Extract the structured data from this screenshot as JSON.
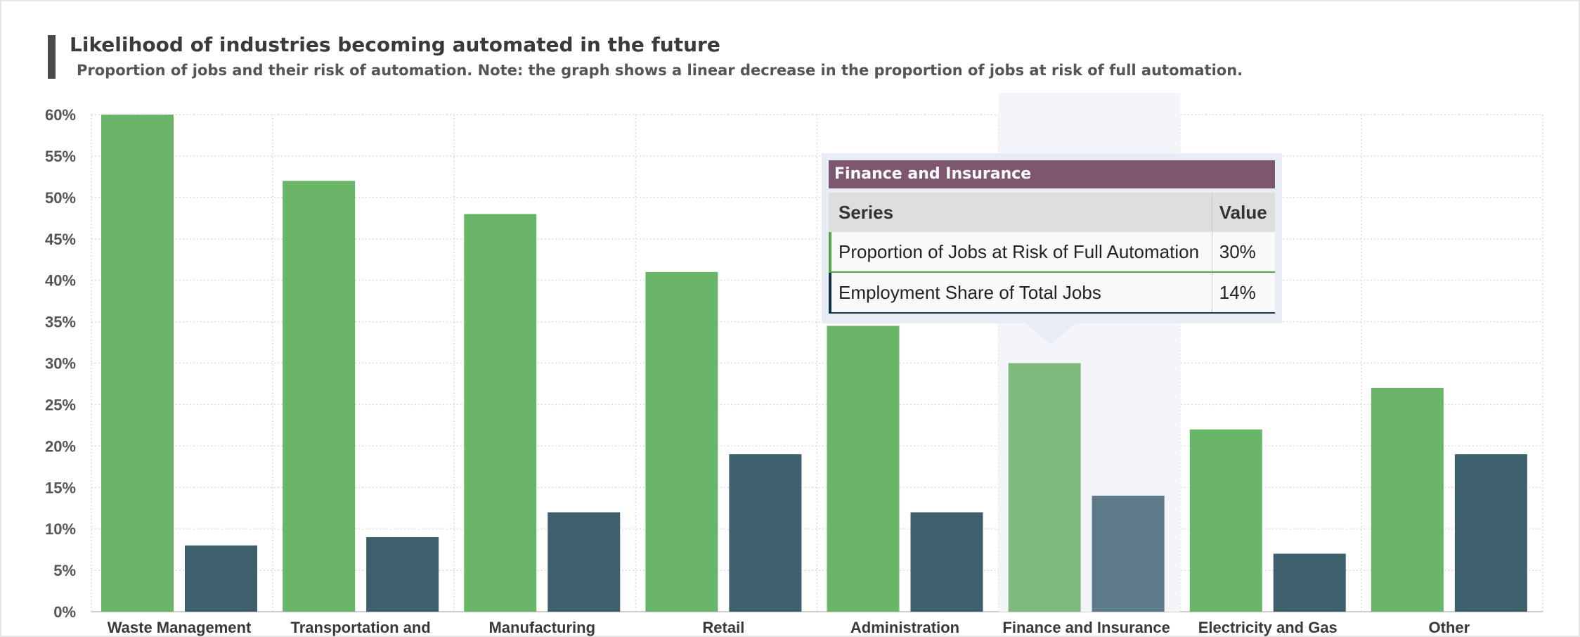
{
  "chart_data": {
    "type": "bar",
    "title": "Likelihood of industries becoming automated in the future",
    "subtitle": "Proportion of jobs and their risk of automation. Note: the graph shows a linear decrease in the proportion of jobs at risk of full automation.",
    "categories": [
      "Waste Management",
      "Transportation and",
      "Manufacturing",
      "Retail",
      "Administration",
      "Finance and Insurance",
      "Electricity and Gas",
      "Other"
    ],
    "series": [
      {
        "name": "Proportion of Jobs at Risk of Full Automation",
        "color": "#6ab668",
        "highlight_color": "#7fba7d",
        "values": [
          60,
          52,
          48,
          41,
          34.5,
          30,
          22,
          27
        ]
      },
      {
        "name": "Employment Share of Total Jobs",
        "color": "#3e5f6c",
        "highlight_color": "#5c7a88",
        "values": [
          8,
          9,
          12,
          19,
          12,
          14,
          7,
          19
        ]
      }
    ],
    "yticks": [
      "0%",
      "5%",
      "10%",
      "15%",
      "20%",
      "25%",
      "30%",
      "35%",
      "40%",
      "45%",
      "50%",
      "55%",
      "60%"
    ],
    "ylim": [
      0,
      60
    ],
    "grid": true,
    "highlighted_category": "Finance and Insurance"
  },
  "tooltip": {
    "header": "Finance and Insurance",
    "col_series": "Series",
    "col_value": "Value",
    "rows": [
      {
        "series": "Proportion of Jobs at Risk of Full Automation",
        "value": "30%",
        "color": "#4ea843"
      },
      {
        "series": "Employment Share of Total Jobs",
        "value": "14%",
        "color": "#0e3447"
      }
    ]
  }
}
